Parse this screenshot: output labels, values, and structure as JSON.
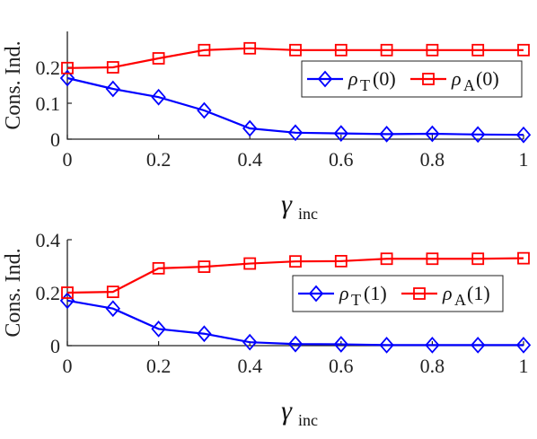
{
  "chart_data": [
    {
      "type": "line",
      "ylabel": "Cons. Ind.",
      "xlabel": "γ",
      "xlabel_sub": "inc",
      "xlim": [
        0,
        1
      ],
      "ylim": [
        0,
        0.3
      ],
      "xticks": [
        "0",
        "0.2",
        "0.4",
        "0.6",
        "0.8",
        "1"
      ],
      "yticks": [
        "0",
        "0.1",
        "0.2"
      ],
      "grid": false,
      "legend_position": "right, inside",
      "x": [
        0,
        0.1,
        0.2,
        0.3,
        0.4,
        0.5,
        0.6,
        0.7,
        0.8,
        0.9,
        1.0
      ],
      "series": [
        {
          "name": "ρ",
          "name_sub": "T",
          "name_suffix": "(0)",
          "color": "#0000ff",
          "marker": "diamond",
          "values": [
            0.17,
            0.14,
            0.117,
            0.08,
            0.03,
            0.018,
            0.016,
            0.014,
            0.015,
            0.013,
            0.012
          ]
        },
        {
          "name": "ρ",
          "name_sub": "A",
          "name_suffix": "(0)",
          "color": "#ff0000",
          "marker": "square",
          "values": [
            0.198,
            0.2,
            0.225,
            0.248,
            0.253,
            0.248,
            0.248,
            0.248,
            0.248,
            0.248,
            0.248
          ]
        }
      ]
    },
    {
      "type": "line",
      "ylabel": "Cons. Ind.",
      "xlabel": "γ",
      "xlabel_sub": "inc",
      "xlim": [
        0,
        1
      ],
      "ylim": [
        0,
        0.4
      ],
      "xticks": [
        "0",
        "0.2",
        "0.4",
        "0.6",
        "0.8",
        "1"
      ],
      "yticks": [
        "0",
        "0.2",
        "0.4"
      ],
      "grid": false,
      "legend_position": "right, inside",
      "x": [
        0,
        0.1,
        0.2,
        0.3,
        0.4,
        0.5,
        0.6,
        0.7,
        0.8,
        0.9,
        1.0
      ],
      "series": [
        {
          "name": "ρ",
          "name_sub": "T",
          "name_suffix": "(1)",
          "color": "#0000ff",
          "marker": "diamond",
          "values": [
            0.17,
            0.14,
            0.063,
            0.045,
            0.013,
            0.006,
            0.005,
            0.002,
            0.002,
            0.002,
            0.002
          ]
        },
        {
          "name": "ρ",
          "name_sub": "A",
          "name_suffix": "(1)",
          "color": "#ff0000",
          "marker": "square",
          "values": [
            0.2,
            0.203,
            0.292,
            0.298,
            0.31,
            0.318,
            0.319,
            0.328,
            0.328,
            0.328,
            0.33
          ]
        }
      ]
    }
  ]
}
